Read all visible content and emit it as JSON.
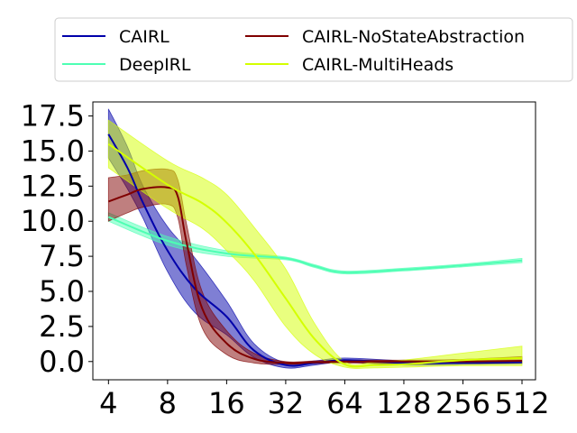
{
  "chart_data": {
    "type": "line",
    "title": "",
    "xlabel": "",
    "ylabel": "",
    "x_scale": "log2",
    "x": [
      4,
      8,
      16,
      32,
      64,
      128,
      256,
      512
    ],
    "x_tick_labels": [
      "4",
      "8",
      "16",
      "32",
      "64",
      "128",
      "256",
      "512"
    ],
    "y_ticks": [
      0.0,
      2.5,
      5.0,
      7.5,
      10.0,
      12.5,
      15.0,
      17.5
    ],
    "y_tick_labels": [
      "0.0",
      "2.5",
      "5.0",
      "7.5",
      "10.0",
      "12.5",
      "15.0",
      "17.5"
    ],
    "xlim": [
      3.33,
      600
    ],
    "ylim": [
      -1.3,
      18.5
    ],
    "grid": false,
    "legend_position": "above plot, two columns",
    "series": [
      {
        "name": "CAIRL",
        "color": "#0000aa",
        "x": [
          4,
          5,
          6,
          8,
          11,
          16,
          22,
          32,
          45,
          64,
          128,
          256,
          512
        ],
        "y": [
          16.2,
          13.8,
          11.3,
          7.9,
          5.2,
          3.2,
          0.8,
          -0.25,
          -0.1,
          0.1,
          -0.1,
          -0.1,
          -0.05
        ],
        "upper": [
          18.0,
          15.3,
          12.5,
          9.6,
          7.4,
          4.3,
          1.3,
          -0.1,
          0.05,
          0.25,
          0.05,
          -0.05,
          0.05
        ],
        "lower": [
          14.5,
          12.3,
          10.2,
          6.4,
          3.5,
          1.9,
          0.3,
          -0.45,
          -0.25,
          -0.05,
          -0.25,
          -0.2,
          -0.15
        ]
      },
      {
        "name": "DeepIRL",
        "color": "#4dffb3",
        "x": [
          4,
          8,
          16,
          32,
          45,
          64,
          128,
          256,
          512
        ],
        "y": [
          10.3,
          8.6,
          7.7,
          7.35,
          6.8,
          6.35,
          6.55,
          6.85,
          7.2
        ],
        "upper": [
          10.6,
          8.9,
          7.9,
          7.45,
          6.9,
          6.45,
          6.65,
          6.95,
          7.35
        ],
        "lower": [
          10.0,
          8.3,
          7.5,
          7.25,
          6.7,
          6.25,
          6.45,
          6.75,
          7.05
        ]
      },
      {
        "name": "CAIRL-NoStateAbstraction",
        "color": "#800000",
        "x": [
          4,
          5,
          6,
          8,
          9,
          10,
          12,
          16,
          22,
          32,
          45,
          64,
          128,
          256,
          512
        ],
        "y": [
          11.4,
          11.9,
          12.3,
          12.4,
          11.8,
          8.5,
          3.8,
          1.3,
          0.2,
          -0.1,
          -0.05,
          0.0,
          0.0,
          0.0,
          0.05
        ],
        "upper": [
          13.1,
          13.3,
          13.6,
          13.7,
          13.0,
          9.8,
          5.0,
          2.2,
          0.6,
          0.0,
          0.05,
          0.1,
          0.1,
          0.15,
          0.35
        ],
        "lower": [
          10.0,
          10.6,
          11.0,
          11.2,
          10.3,
          6.8,
          2.4,
          0.5,
          -0.1,
          -0.2,
          -0.15,
          -0.1,
          -0.15,
          -0.15,
          -0.1
        ]
      },
      {
        "name": "CAIRL-MultiHeads",
        "color": "#d4ff00",
        "x": [
          4,
          8,
          12,
          16,
          22,
          32,
          45,
          64,
          90,
          128,
          256,
          512
        ],
        "y": [
          15.5,
          12.6,
          11.3,
          9.9,
          7.7,
          4.5,
          1.6,
          -0.2,
          -0.25,
          -0.2,
          0.1,
          0.25
        ],
        "upper": [
          17.2,
          14.3,
          13.1,
          11.9,
          9.6,
          6.6,
          2.7,
          0.0,
          -0.05,
          0.1,
          0.6,
          1.1
        ],
        "lower": [
          13.8,
          10.9,
          9.5,
          7.9,
          5.8,
          2.5,
          0.5,
          -0.4,
          -0.45,
          -0.4,
          -0.3,
          -0.3
        ]
      }
    ]
  }
}
